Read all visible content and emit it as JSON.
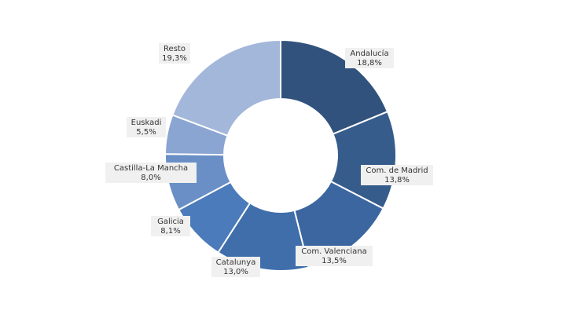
{
  "chart_data": {
    "type": "pie",
    "categories": [
      "Andalucía",
      "Com. de Madrid",
      "Com. Valenciana",
      "Catalunya",
      "Galicia",
      "Castilla-La Mancha",
      "Euskadi",
      "Resto"
    ],
    "values": [
      18.8,
      13.8,
      13.5,
      13.0,
      8.1,
      8.0,
      5.5,
      19.3
    ],
    "value_labels": [
      "18,8%",
      "13,8%",
      "13,5%",
      "13,0%",
      "8,1%",
      "8,0%",
      "5,5%",
      "19,3%"
    ],
    "colors": [
      "#31527c",
      "#365c8c",
      "#3b66a0",
      "#3f6eab",
      "#4b7bba",
      "#6a8fc6",
      "#8aa5d2",
      "#a3b7da"
    ]
  }
}
